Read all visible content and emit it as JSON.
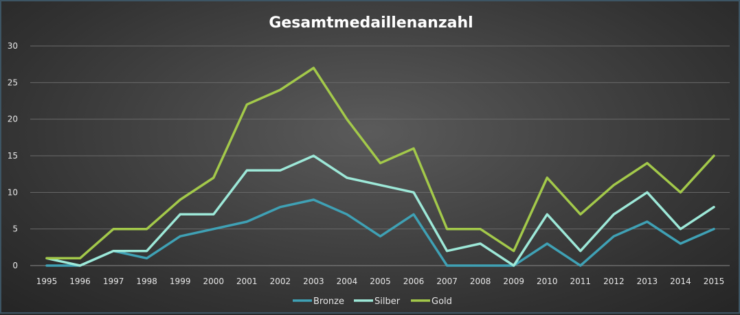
{
  "chart_data": {
    "type": "line",
    "title": "Gesamtmedaillenanzahl",
    "xlabel": "",
    "ylabel": "",
    "categories": [
      "1995",
      "1996",
      "1997",
      "1998",
      "1999",
      "2000",
      "2001",
      "2002",
      "2003",
      "2004",
      "2005",
      "2006",
      "2007",
      "2008",
      "2009",
      "2010",
      "2011",
      "2012",
      "2013",
      "2014",
      "2015"
    ],
    "ylim": [
      0,
      30
    ],
    "yticks": [
      0,
      5,
      10,
      15,
      20,
      25,
      30
    ],
    "grid": true,
    "legend_position": "bottom",
    "series": [
      {
        "name": "Bronze",
        "color": "#3fa1b5",
        "values": [
          0,
          0,
          2,
          1,
          4,
          5,
          6,
          8,
          9,
          7,
          4,
          7,
          0,
          0,
          0,
          3,
          0,
          4,
          6,
          3,
          5
        ]
      },
      {
        "name": "Silber",
        "color": "#9de8d8",
        "values": [
          1,
          0,
          2,
          2,
          7,
          7,
          13,
          13,
          15,
          12,
          11,
          10,
          2,
          3,
          0,
          7,
          2,
          7,
          10,
          5,
          8
        ]
      },
      {
        "name": "Gold",
        "color": "#a3c94a",
        "values": [
          1,
          1,
          5,
          5,
          9,
          12,
          22,
          24,
          27,
          20,
          14,
          16,
          5,
          5,
          2,
          12,
          7,
          11,
          14,
          10,
          15
        ]
      }
    ]
  }
}
